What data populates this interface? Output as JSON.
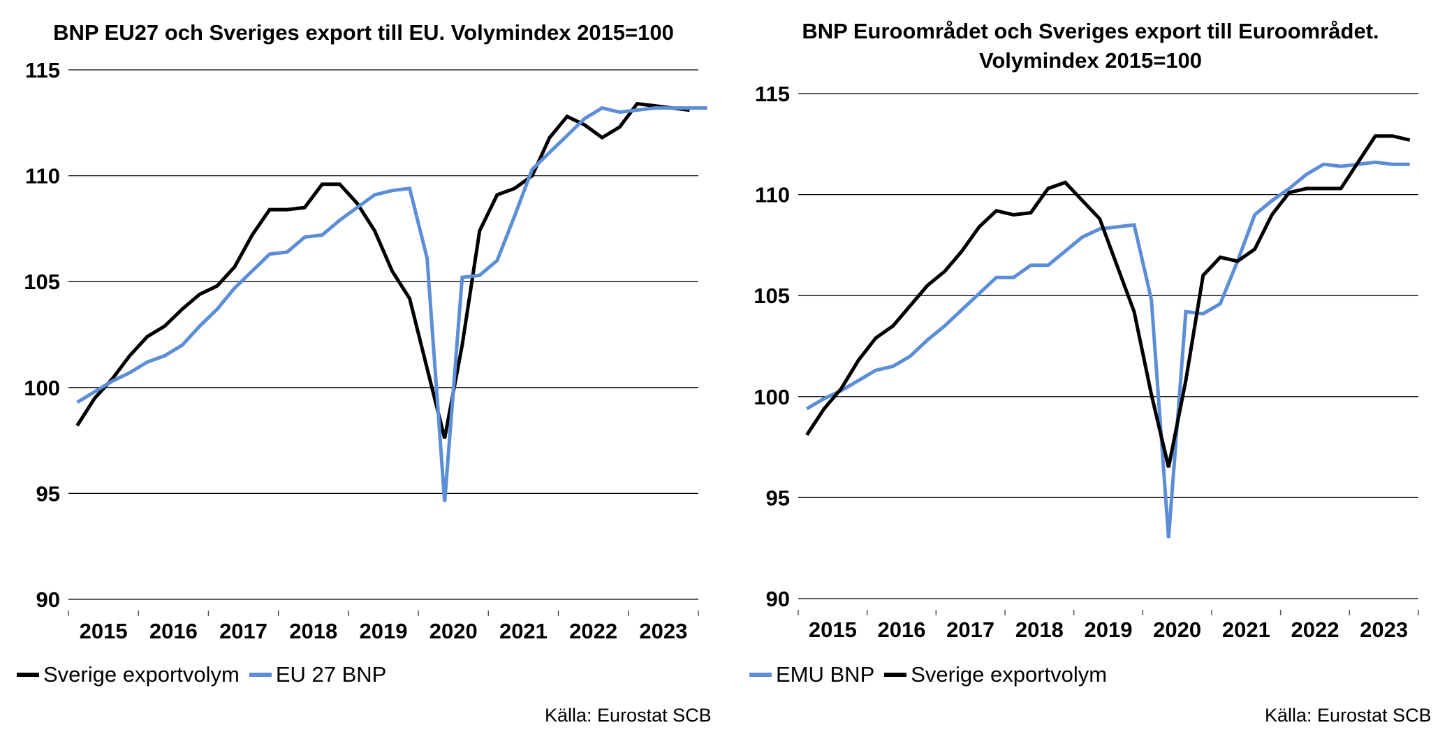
{
  "chart_data": [
    {
      "type": "line",
      "title": "BNP EU27 och Sveriges export till EU. Volymindex 2015=100",
      "year_labels": [
        "2015",
        "2016",
        "2017",
        "2018",
        "2019",
        "2020",
        "2021",
        "2022",
        "2023"
      ],
      "ylim": [
        90,
        115
      ],
      "yticks": [
        90,
        95,
        100,
        105,
        110,
        115
      ],
      "grid": true,
      "legend_position": "bottom-left",
      "series": [
        {
          "name": "Sverige exportvolym",
          "color": "#000000",
          "values": [
            98.2,
            99.5,
            100.4,
            101.5,
            102.4,
            102.9,
            103.7,
            104.4,
            104.8,
            105.7,
            107.2,
            108.4,
            108.4,
            108.5,
            109.6,
            109.6,
            108.7,
            107.4,
            105.5,
            104.2,
            100.9,
            97.6,
            102.0,
            107.4,
            109.1,
            109.4,
            110.0,
            111.8,
            112.8,
            112.4,
            111.8,
            112.3,
            113.4,
            113.3,
            113.2,
            113.1
          ]
        },
        {
          "name": "EU 27 BNP",
          "color": "#5b8ed6",
          "values": [
            99.3,
            99.8,
            100.3,
            100.7,
            101.2,
            101.5,
            102.0,
            102.9,
            103.7,
            104.7,
            105.5,
            106.3,
            106.4,
            107.1,
            107.2,
            107.9,
            108.5,
            109.1,
            109.3,
            109.4,
            106.1,
            94.6,
            105.2,
            105.3,
            106.0,
            108.1,
            110.3,
            111.1,
            111.9,
            112.7,
            113.2,
            113.0,
            113.1,
            113.2,
            113.2,
            113.2,
            113.2
          ]
        }
      ]
    },
    {
      "type": "line",
      "title": "BNP Euroområdet och Sveriges export till Euroområdet.\nVolymindex 2015=100",
      "year_labels": [
        "2015",
        "2016",
        "2017",
        "2018",
        "2019",
        "2020",
        "2021",
        "2022",
        "2023"
      ],
      "ylim": [
        90,
        115
      ],
      "yticks": [
        90,
        95,
        100,
        105,
        110,
        115
      ],
      "grid": true,
      "legend_position": "bottom-left",
      "series": [
        {
          "name": "EMU BNP",
          "color": "#5b8ed6",
          "values": [
            99.4,
            99.9,
            100.3,
            100.8,
            101.3,
            101.5,
            102.0,
            102.8,
            103.5,
            104.3,
            105.1,
            105.9,
            105.9,
            106.5,
            106.5,
            107.2,
            107.9,
            108.3,
            108.4,
            108.5,
            104.8,
            93.0,
            104.2,
            104.1,
            104.6,
            106.7,
            109.0,
            109.7,
            110.3,
            111.0,
            111.5,
            111.4,
            111.5,
            111.6,
            111.5,
            111.5
          ]
        },
        {
          "name": "Sverige exportvolym",
          "color": "#000000",
          "values": [
            98.1,
            99.4,
            100.4,
            101.8,
            102.9,
            103.5,
            104.5,
            105.5,
            106.2,
            107.2,
            108.4,
            109.2,
            109.0,
            109.1,
            110.3,
            110.6,
            109.7,
            108.8,
            106.5,
            104.2,
            100.1,
            96.5,
            100.8,
            106.0,
            106.9,
            106.7,
            107.3,
            109.0,
            110.1,
            110.3,
            110.3,
            110.3,
            111.6,
            112.9,
            112.9,
            112.7
          ]
        }
      ]
    }
  ],
  "source_left": "Källa: Eurostat SCB",
  "source_right": "Källa: Eurostat SCB"
}
